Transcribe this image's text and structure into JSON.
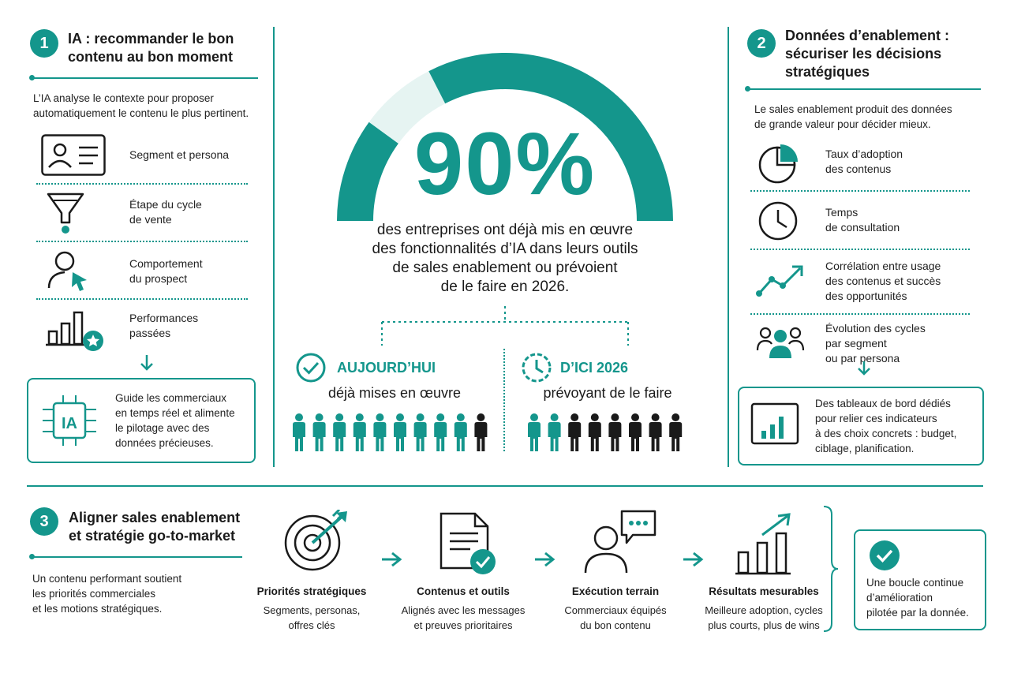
{
  "section1": {
    "number": "1",
    "title_line1": "IA : recommander le bon",
    "title_line2": "contenu au bon moment",
    "intro_line1": "L’IA analyse le contexte pour proposer",
    "intro_line2": "automatiquement le contenu le plus pertinent.",
    "items": [
      {
        "line1": "Segment et persona",
        "line2": "",
        "icon": "id-card-icon"
      },
      {
        "line1": "Étape du cycle",
        "line2": "de vente",
        "icon": "funnel-icon"
      },
      {
        "line1": "Comportement",
        "line2": "du prospect",
        "icon": "user-cursor-icon"
      },
      {
        "line1": "Performances",
        "line2": "passées",
        "icon": "bar-chart-star-icon"
      }
    ],
    "box_line1": "Guide les commerciaux",
    "box_line2": "en temps réel et alimente",
    "box_line3": "le pilotage avec des",
    "box_line4": "données précieuses.",
    "box_icon_label": "IA"
  },
  "center": {
    "big_stat": "90%",
    "gauge_value_percent": 90,
    "statement_line1": "des entreprises ont déjà mis en œuvre",
    "statement_line2": "des fonctionnalités d’IA dans leurs outils",
    "statement_line3": "de sales enablement ou prévoient",
    "statement_line4": "de le faire en 2026.",
    "today_label": "AUJOURD’HUI",
    "today_desc": "déjà mises en œuvre",
    "today_people_highlighted": 9,
    "today_people_total": 10,
    "future_label": "D’ICI 2026",
    "future_desc": "prévoyant de le faire",
    "future_people_highlighted": 2,
    "future_people_total": 8
  },
  "section2": {
    "number": "2",
    "title_line1": "Données d’enablement :",
    "title_line2": "sécuriser les décisions",
    "title_line3": "stratégiques",
    "intro_line1": "Le sales enablement produit des données",
    "intro_line2": "de grande valeur pour décider mieux.",
    "items": [
      {
        "line1": "Taux d’adoption",
        "line2": "des contenus",
        "line3": "",
        "icon": "pie-chart-icon"
      },
      {
        "line1": "Temps",
        "line2": "de consultation",
        "line3": "",
        "icon": "clock-icon"
      },
      {
        "line1": "Corrélation entre usage",
        "line2": "des contenus et succès",
        "line3": "des opportunités",
        "icon": "trend-line-icon"
      },
      {
        "line1": "Évolution des cycles",
        "line2": "par segment",
        "line3": "ou par persona",
        "icon": "group-icon"
      }
    ],
    "box_line1": "Des tableaux de bord dédiés",
    "box_line2": "pour relier ces indicateurs",
    "box_line3": "à des choix concrets : budget,",
    "box_line4": "ciblage, planification."
  },
  "section3": {
    "number": "3",
    "title_line1": "Aligner sales enablement",
    "title_line2": "et stratégie go-to-market",
    "intro_line1": "Un contenu performant soutient",
    "intro_line2": "les priorités commerciales",
    "intro_line3": "et les motions stratégiques.",
    "steps": [
      {
        "title": "Priorités stratégiques",
        "line1": "Segments, personas,",
        "line2": "offres clés",
        "icon": "target-icon"
      },
      {
        "title": "Contenus et outils",
        "line1": "Alignés avec les messages",
        "line2": "et preuves prioritaires",
        "icon": "document-check-icon"
      },
      {
        "title": "Exécution terrain",
        "line1": "Commerciaux équipés",
        "line2": "du bon contenu",
        "icon": "person-chat-icon"
      },
      {
        "title": "Résultats mesurables",
        "line1": "Meilleure adoption, cycles",
        "line2": "plus courts, plus de wins",
        "icon": "growth-chart-icon"
      }
    ],
    "loop_line1": "Une boucle continue",
    "loop_line2": "d’amélioration",
    "loop_line3": "pilotée par la donnée."
  },
  "colors": {
    "accent": "#14968c",
    "accent_light": "#e6f4f2",
    "dark": "#1a1a1a"
  }
}
